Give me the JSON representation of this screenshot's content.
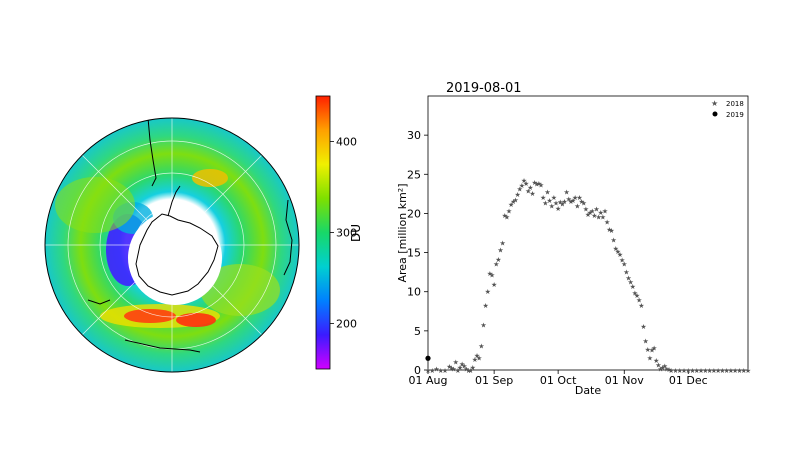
{
  "chart_data": [
    {
      "type": "heatmap",
      "projection": "south-polar orthographic",
      "description_of_fields": "total column ozone map",
      "colorbar": {
        "label": "DU",
        "ticks": [
          200,
          300,
          400
        ],
        "range": [
          150,
          450
        ],
        "colors": [
          "#d000ff",
          "#3b1bff",
          "#0080ff",
          "#00d0d0",
          "#18d868",
          "#7ee000",
          "#f0f000",
          "#ffa000",
          "#ff2000"
        ]
      }
    },
    {
      "type": "scatter",
      "title": "2019-08-01",
      "xlabel": "Date",
      "ylabel": "Area [million km²]",
      "ylim": [
        0,
        35
      ],
      "yticks": [
        "0",
        "5",
        "10",
        "15",
        "20",
        "25",
        "30"
      ],
      "xticks": [
        "01 Aug",
        "01 Sep",
        "01 Oct",
        "01 Nov",
        "01 Dec"
      ],
      "x_domain_days_from_aug1": [
        0,
        150
      ],
      "legend_position": "top-right",
      "series": [
        {
          "name": "2018",
          "marker": "star",
          "color": "#555555",
          "points": [
            [
              0,
              0
            ],
            [
              2,
              0
            ],
            [
              4,
              0.2
            ],
            [
              6,
              0
            ],
            [
              8,
              0
            ],
            [
              10,
              0.5
            ],
            [
              11,
              0.3
            ],
            [
              12,
              0.2
            ],
            [
              13,
              1.1
            ],
            [
              14,
              0
            ],
            [
              15,
              0.4
            ],
            [
              16,
              0.8
            ],
            [
              17,
              0.6
            ],
            [
              18,
              0.2
            ],
            [
              19,
              0
            ],
            [
              20,
              0
            ],
            [
              21,
              0.4
            ],
            [
              22,
              1.4
            ],
            [
              23,
              1.9
            ],
            [
              24,
              1.6
            ],
            [
              25,
              3.1
            ],
            [
              26,
              5.8
            ],
            [
              27,
              8.3
            ],
            [
              28,
              10.1
            ],
            [
              29,
              12.4
            ],
            [
              30,
              12.2
            ],
            [
              31,
              11.0
            ],
            [
              32,
              13.6
            ],
            [
              33,
              14.2
            ],
            [
              34,
              15.4
            ],
            [
              35,
              16.3
            ],
            [
              36,
              19.8
            ],
            [
              37,
              19.6
            ],
            [
              38,
              20.4
            ],
            [
              39,
              21.2
            ],
            [
              40,
              21.6
            ],
            [
              41,
              21.8
            ],
            [
              42,
              22.5
            ],
            [
              43,
              23.2
            ],
            [
              44,
              23.6
            ],
            [
              45,
              24.3
            ],
            [
              46,
              23.9
            ],
            [
              47,
              22.9
            ],
            [
              48,
              23.4
            ],
            [
              49,
              22.6
            ],
            [
              50,
              24.0
            ],
            [
              51,
              23.8
            ],
            [
              52,
              23.9
            ],
            [
              53,
              23.7
            ],
            [
              54,
              22.1
            ],
            [
              55,
              21.4
            ],
            [
              56,
              22.8
            ],
            [
              57,
              21.7
            ],
            [
              58,
              21.0
            ],
            [
              59,
              22.1
            ],
            [
              60,
              21.4
            ],
            [
              61,
              20.7
            ],
            [
              62,
              21.5
            ],
            [
              63,
              21.3
            ],
            [
              64,
              21.6
            ],
            [
              65,
              22.8
            ],
            [
              66,
              21.9
            ],
            [
              67,
              21.6
            ],
            [
              68,
              21.7
            ],
            [
              69,
              22.1
            ],
            [
              70,
              21.0
            ],
            [
              71,
              22.1
            ],
            [
              72,
              21.6
            ],
            [
              73,
              21.4
            ],
            [
              74,
              20.6
            ],
            [
              75,
              19.9
            ],
            [
              76,
              20.2
            ],
            [
              77,
              20.4
            ],
            [
              78,
              19.8
            ],
            [
              79,
              20.6
            ],
            [
              80,
              19.6
            ],
            [
              81,
              20.2
            ],
            [
              82,
              19.6
            ],
            [
              83,
              20.4
            ],
            [
              84,
              19.0
            ],
            [
              85,
              18.0
            ],
            [
              86,
              17.9
            ],
            [
              87,
              16.7
            ],
            [
              88,
              15.6
            ],
            [
              89,
              15.2
            ],
            [
              90,
              14.8
            ],
            [
              91,
              14.1
            ],
            [
              92,
              13.6
            ],
            [
              93,
              12.6
            ],
            [
              94,
              11.8
            ],
            [
              95,
              11.3
            ],
            [
              96,
              10.7
            ],
            [
              97,
              9.9
            ],
            [
              98,
              9.6
            ],
            [
              99,
              9.0
            ],
            [
              100,
              8.3
            ],
            [
              101,
              5.6
            ],
            [
              102,
              3.8
            ],
            [
              103,
              2.7
            ],
            [
              104,
              1.6
            ],
            [
              105,
              2.6
            ],
            [
              106,
              2.9
            ],
            [
              107,
              1.3
            ],
            [
              108,
              0.7
            ],
            [
              109,
              0.2
            ],
            [
              110,
              0.4
            ],
            [
              111,
              0.6
            ],
            [
              112,
              0.2
            ],
            [
              113,
              0.1
            ],
            [
              114,
              0
            ],
            [
              116,
              0
            ],
            [
              118,
              0
            ],
            [
              120,
              0
            ],
            [
              122,
              0
            ],
            [
              124,
              0
            ],
            [
              126,
              0
            ],
            [
              128,
              0
            ],
            [
              130,
              0
            ],
            [
              132,
              0
            ],
            [
              134,
              0
            ],
            [
              136,
              0
            ],
            [
              138,
              0
            ],
            [
              140,
              0
            ],
            [
              142,
              0
            ],
            [
              144,
              0
            ],
            [
              146,
              0
            ],
            [
              148,
              0
            ],
            [
              150,
              0
            ]
          ]
        },
        {
          "name": "2019",
          "marker": "circle",
          "color": "#000000",
          "points": [
            [
              0,
              1.5
            ]
          ]
        }
      ]
    }
  ]
}
